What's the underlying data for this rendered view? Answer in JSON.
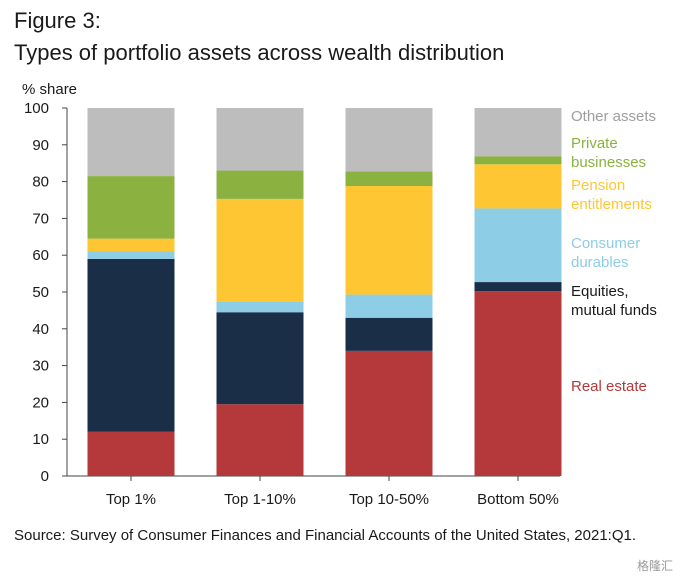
{
  "figure_label": "Figure 3:",
  "title": "Types of portfolio assets across wealth distribution",
  "source": "Source: Survey of Consumer Finances and Financial Accounts of the United States, 2021:Q1.",
  "watermark": "格隆汇",
  "chart_data": {
    "type": "bar",
    "stacked": true,
    "title": "Types of portfolio assets across wealth distribution",
    "xlabel": "",
    "ylabel": "% share",
    "ylim": [
      0,
      100
    ],
    "yticks": [
      0,
      10,
      20,
      30,
      40,
      50,
      60,
      70,
      80,
      90,
      100
    ],
    "grid": false,
    "legend": "right, labels aligned with top bar segments",
    "categories": [
      "Top 1%",
      "Top 1-10%",
      "Top 10-50%",
      "Bottom 50%"
    ],
    "series": [
      {
        "name": "Real estate",
        "color": "#B5393A",
        "values": [
          12,
          19.5,
          34,
          50.2
        ]
      },
      {
        "name": "Equities, mutual funds",
        "color": "#1B2E48",
        "values": [
          47,
          25,
          9,
          2.5
        ]
      },
      {
        "name": "Consumer durables",
        "color": "#8DCDE5",
        "values": [
          2,
          2.8,
          6.3,
          20
        ]
      },
      {
        "name": "Pension entitlements",
        "color": "#FDC632",
        "values": [
          3.5,
          28,
          29.5,
          12
        ]
      },
      {
        "name": "Private businesses",
        "color": "#8BB240",
        "values": [
          17,
          7.7,
          4,
          2.2
        ]
      },
      {
        "name": "Other assets",
        "color": "#BDBDBD",
        "values": [
          18.5,
          17,
          17.2,
          13.1
        ]
      }
    ]
  }
}
